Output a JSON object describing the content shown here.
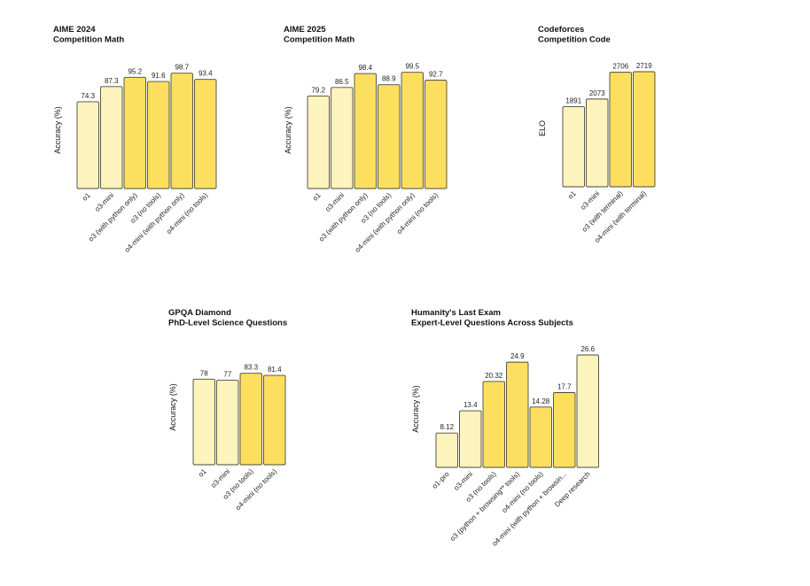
{
  "colors": {
    "light": "#fdf3bc",
    "dark": "#fcdf5e",
    "stroke": "#4a4a3a",
    "text": "#111111"
  },
  "chart_data": [
    {
      "type": "bar",
      "title": "AIME 2024",
      "subtitle": "Competition Math",
      "ylabel": "Accuracy (%)",
      "xlabel": "",
      "ylim": [
        0,
        100
      ],
      "grid": false,
      "categories": [
        "o1",
        "o3-mini",
        "o3 (with python only)",
        "o3 (no tools)",
        "o4-mini (with python only)",
        "o4-mini (no tools)"
      ],
      "values": [
        74.3,
        87.3,
        95.2,
        91.6,
        98.7,
        93.4
      ],
      "labels": [
        "74.3",
        "87.3",
        "95.2",
        "91.6",
        "98.7",
        "93.4"
      ],
      "shades": [
        "light",
        "light",
        "dark",
        "dark",
        "dark",
        "dark"
      ]
    },
    {
      "type": "bar",
      "title": "AIME 2025",
      "subtitle": "Competition Math",
      "ylabel": "Accuracy (%)",
      "xlabel": "",
      "ylim": [
        0,
        100
      ],
      "grid": false,
      "categories": [
        "o1",
        "o3-mini",
        "o3 (with python only)",
        "o3 (no tools)",
        "o4-mini (with python only)",
        "o4-mini (no tools)"
      ],
      "values": [
        79.2,
        86.5,
        98.4,
        88.9,
        99.5,
        92.7
      ],
      "labels": [
        "79.2",
        "86.5",
        "98.4",
        "88.9",
        "99.5",
        "92.7"
      ],
      "shades": [
        "light",
        "light",
        "dark",
        "dark",
        "dark",
        "dark"
      ]
    },
    {
      "type": "bar",
      "title": "Codeforces",
      "subtitle": "Competition Code",
      "ylabel": "ELO",
      "xlabel": "",
      "ylim": [
        0,
        2719
      ],
      "grid": false,
      "categories": [
        "o1",
        "o3-mini",
        "o3 (with terminal)",
        "o4-mini (with terminal)"
      ],
      "values": [
        1891,
        2073,
        2706,
        2719
      ],
      "labels": [
        "1891",
        "2073",
        "2706",
        "2719"
      ],
      "shades": [
        "light",
        "light",
        "dark",
        "dark"
      ]
    },
    {
      "type": "bar",
      "title": "GPQA Diamond",
      "subtitle": "PhD-Level Science Questions",
      "ylabel": "Accuracy (%)",
      "xlabel": "",
      "ylim": [
        0,
        100
      ],
      "grid": false,
      "categories": [
        "o1",
        "o3-mini",
        "o3 (no tools)",
        "o4-mini (no tools)"
      ],
      "values": [
        78,
        77,
        83.3,
        81.4
      ],
      "labels": [
        "78",
        "77",
        "83.3",
        "81.4"
      ],
      "shades": [
        "light",
        "light",
        "dark",
        "dark"
      ]
    },
    {
      "type": "bar",
      "title": "Humanity's Last Exam",
      "subtitle": "Expert-Level Questions Across Subjects",
      "ylabel": "Accuracy (%)",
      "xlabel": "",
      "ylim": [
        0,
        26.6
      ],
      "grid": false,
      "categories": [
        "o1-pro",
        "o3-mini",
        "o3 (no tools)",
        "o3 (python + browsing** tools)",
        "o4-mini (no tools)",
        "o4-mini (with python + browsin...",
        "Deep research"
      ],
      "values": [
        8.12,
        13.4,
        20.32,
        24.9,
        14.28,
        17.7,
        26.6
      ],
      "labels": [
        "8.12",
        "13.4",
        "20.32",
        "24.9",
        "14.28",
        "17.7",
        "26.6"
      ],
      "shades": [
        "light",
        "light",
        "dark",
        "dark",
        "dark",
        "dark",
        "light"
      ]
    }
  ]
}
